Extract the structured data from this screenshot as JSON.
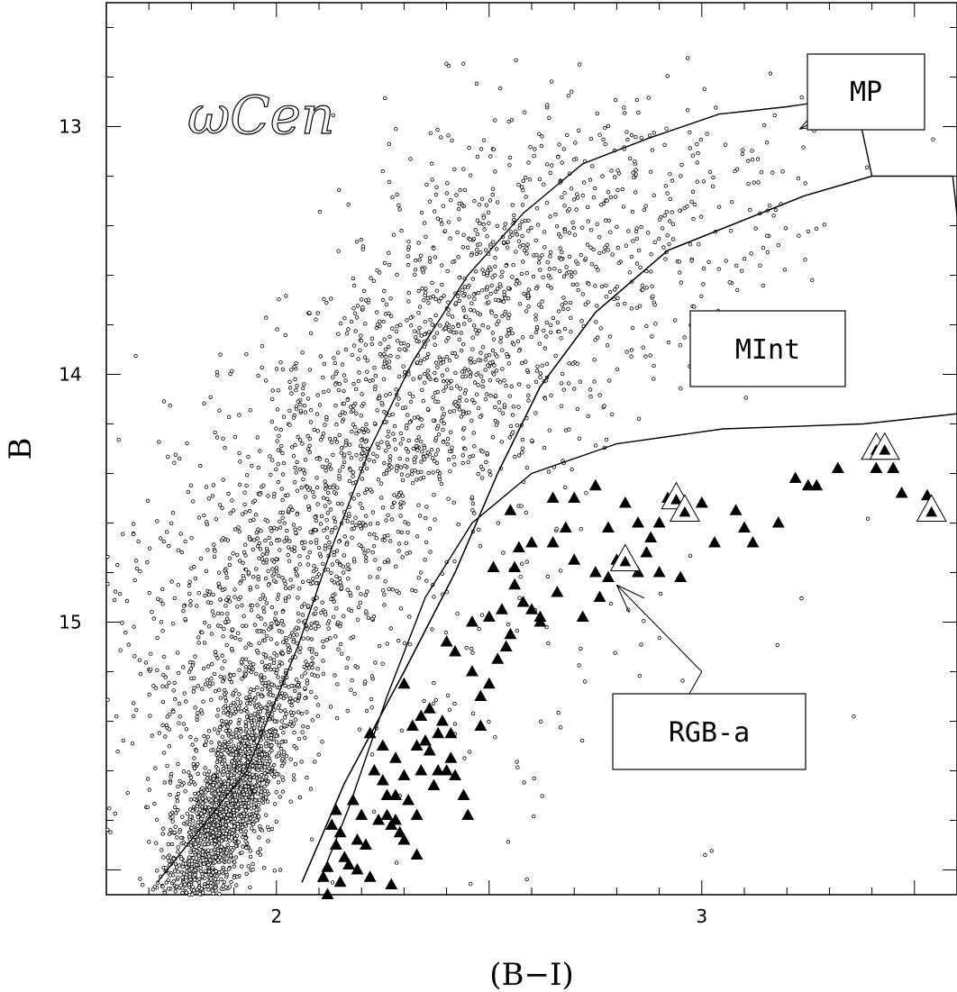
{
  "chart_data": {
    "type": "scatter",
    "title": "ωCen",
    "xlabel": "(B−I)",
    "ylabel": "B",
    "xlim": [
      1.6,
      3.6
    ],
    "ylim": [
      16.1,
      12.5
    ],
    "y_inverted": true,
    "xticks": [
      "2",
      "3"
    ],
    "xtick_values": [
      2,
      3
    ],
    "yticks": [
      "13",
      "14",
      "15"
    ],
    "ytick_values": [
      13,
      14,
      15
    ],
    "grid": false,
    "regions": [
      {
        "label": "MP",
        "polygon": [
          [
            1.72,
            16.05
          ],
          [
            1.93,
            15.6
          ],
          [
            2.05,
            15.1
          ],
          [
            2.13,
            14.7
          ],
          [
            2.22,
            14.3
          ],
          [
            2.32,
            13.95
          ],
          [
            2.45,
            13.6
          ],
          [
            2.58,
            13.35
          ],
          [
            2.72,
            13.15
          ],
          [
            2.87,
            13.05
          ],
          [
            3.04,
            12.95
          ],
          [
            3.2,
            12.92
          ],
          [
            3.36,
            12.88
          ],
          [
            3.4,
            13.2
          ],
          [
            3.24,
            13.28
          ],
          [
            2.92,
            13.5
          ],
          [
            2.75,
            13.75
          ],
          [
            2.62,
            14.05
          ],
          [
            2.52,
            14.4
          ],
          [
            2.42,
            14.8
          ],
          [
            2.3,
            15.2
          ],
          [
            2.16,
            15.65
          ],
          [
            2.06,
            16.05
          ]
        ],
        "arrow_from": [
          3.35,
          12.9
        ],
        "arrow_to": [
          3.23,
          13.01
        ]
      },
      {
        "label": "MInt",
        "polygon": [
          [
            2.06,
            16.05
          ],
          [
            2.16,
            15.65
          ],
          [
            2.3,
            15.2
          ],
          [
            2.42,
            14.8
          ],
          [
            2.52,
            14.4
          ],
          [
            2.62,
            14.05
          ],
          [
            2.75,
            13.75
          ],
          [
            2.92,
            13.5
          ],
          [
            3.24,
            13.28
          ],
          [
            3.4,
            13.2
          ],
          [
            3.59,
            13.2
          ],
          [
            3.65,
            14.15
          ],
          [
            3.38,
            14.2
          ],
          [
            3.05,
            14.22
          ],
          [
            2.8,
            14.28
          ],
          [
            2.6,
            14.4
          ],
          [
            2.46,
            14.6
          ],
          [
            2.35,
            14.9
          ],
          [
            2.26,
            15.3
          ],
          [
            2.17,
            15.75
          ],
          [
            2.1,
            16.05
          ]
        ]
      },
      {
        "label": "RGB-a",
        "arrow_from": [
          3.0,
          15.2
        ],
        "arrow_to": [
          2.8,
          14.85
        ]
      }
    ],
    "series": [
      {
        "marker": "open-circle",
        "clusters": [
          {
            "cx": 1.88,
            "cy": 15.75,
            "sx": 0.05,
            "sy": 0.28,
            "n": 1800,
            "along": -0.9
          },
          {
            "cx": 2.1,
            "cy": 14.6,
            "sx": 0.14,
            "sy": 0.45,
            "n": 1000,
            "along": -0.6
          },
          {
            "cx": 2.45,
            "cy": 13.85,
            "sx": 0.16,
            "sy": 0.4,
            "n": 900,
            "along": -0.5
          },
          {
            "cx": 2.85,
            "cy": 13.4,
            "sx": 0.22,
            "sy": 0.28,
            "n": 350,
            "along": -0.3
          },
          {
            "cx": 1.8,
            "cy": 15.2,
            "sx": 0.12,
            "sy": 0.5,
            "n": 350,
            "along": 0
          },
          {
            "cx": 2.4,
            "cy": 15.2,
            "sx": 0.35,
            "sy": 0.55,
            "n": 150,
            "along": 0
          }
        ]
      },
      {
        "marker": "filled-triangle",
        "points": [
          [
            2.13,
            15.82
          ],
          [
            2.14,
            15.9
          ],
          [
            2.15,
            15.85
          ],
          [
            2.16,
            15.95
          ],
          [
            2.12,
            15.99
          ],
          [
            2.15,
            16.05
          ],
          [
            2.12,
            16.1
          ],
          [
            2.17,
            15.98
          ],
          [
            2.19,
            16.0
          ],
          [
            2.2,
            15.78
          ],
          [
            2.19,
            15.88
          ],
          [
            2.21,
            15.9
          ],
          [
            2.22,
            16.03
          ],
          [
            2.14,
            15.76
          ],
          [
            2.11,
            16.03
          ],
          [
            2.18,
            15.72
          ],
          [
            2.22,
            15.45
          ],
          [
            2.25,
            15.5
          ],
          [
            2.23,
            15.6
          ],
          [
            2.26,
            15.7
          ],
          [
            2.28,
            15.55
          ],
          [
            2.29,
            15.85
          ],
          [
            2.24,
            15.8
          ],
          [
            2.27,
            15.82
          ],
          [
            2.3,
            15.62
          ],
          [
            2.32,
            15.42
          ],
          [
            2.34,
            15.38
          ],
          [
            2.35,
            15.48
          ],
          [
            2.31,
            15.72
          ],
          [
            2.33,
            15.78
          ],
          [
            2.36,
            15.52
          ],
          [
            2.38,
            15.45
          ],
          [
            2.4,
            15.6
          ],
          [
            2.37,
            15.66
          ],
          [
            2.39,
            15.4
          ],
          [
            2.41,
            15.55
          ],
          [
            2.3,
            15.88
          ],
          [
            2.33,
            15.94
          ],
          [
            2.27,
            16.06
          ],
          [
            2.28,
            15.7
          ],
          [
            2.25,
            15.64
          ],
          [
            2.26,
            15.78
          ],
          [
            2.28,
            15.8
          ],
          [
            2.33,
            15.5
          ],
          [
            2.34,
            15.6
          ],
          [
            2.36,
            15.35
          ],
          [
            2.38,
            15.6
          ],
          [
            2.41,
            15.45
          ],
          [
            2.42,
            15.62
          ],
          [
            2.44,
            15.7
          ],
          [
            2.45,
            15.78
          ],
          [
            2.3,
            15.25
          ],
          [
            2.4,
            15.08
          ],
          [
            2.42,
            15.12
          ],
          [
            2.46,
            15.2
          ],
          [
            2.48,
            15.42
          ],
          [
            2.5,
            15.25
          ],
          [
            2.52,
            15.15
          ],
          [
            2.5,
            14.98
          ],
          [
            2.53,
            14.95
          ],
          [
            2.55,
            15.05
          ],
          [
            2.56,
            14.85
          ],
          [
            2.54,
            15.1
          ],
          [
            2.58,
            14.92
          ],
          [
            2.6,
            14.95
          ],
          [
            2.62,
            14.98
          ],
          [
            2.56,
            14.78
          ],
          [
            2.51,
            14.78
          ],
          [
            2.57,
            14.7
          ],
          [
            2.6,
            14.68
          ],
          [
            2.65,
            14.68
          ],
          [
            2.7,
            14.75
          ],
          [
            2.75,
            14.8
          ],
          [
            2.78,
            14.82
          ],
          [
            2.8,
            14.75
          ],
          [
            2.85,
            14.8
          ],
          [
            2.87,
            14.72
          ],
          [
            2.9,
            14.6
          ],
          [
            2.92,
            14.5
          ],
          [
            2.97,
            14.55
          ],
          [
            3.03,
            14.68
          ],
          [
            3.08,
            14.55
          ],
          [
            3.1,
            14.62
          ],
          [
            3.12,
            14.68
          ],
          [
            3.18,
            14.6
          ],
          [
            3.22,
            14.42
          ],
          [
            3.25,
            14.45
          ],
          [
            3.27,
            14.45
          ],
          [
            3.32,
            14.38
          ],
          [
            3.41,
            14.38
          ],
          [
            3.45,
            14.38
          ],
          [
            3.47,
            14.48
          ],
          [
            3.53,
            14.49
          ],
          [
            2.78,
            14.62
          ],
          [
            2.82,
            14.52
          ],
          [
            2.85,
            14.6
          ],
          [
            2.88,
            14.66
          ],
          [
            2.7,
            14.5
          ],
          [
            2.65,
            14.5
          ],
          [
            2.75,
            14.45
          ],
          [
            2.68,
            14.62
          ],
          [
            2.55,
            14.55
          ],
          [
            2.95,
            14.52
          ],
          [
            3.0,
            14.52
          ],
          [
            2.9,
            14.8
          ],
          [
            2.95,
            14.82
          ],
          [
            2.62,
            15.0
          ],
          [
            2.66,
            14.88
          ],
          [
            2.72,
            14.98
          ],
          [
            2.76,
            14.9
          ],
          [
            2.48,
            15.3
          ],
          [
            2.46,
            15.0
          ]
        ]
      },
      {
        "marker": "open-triangle-with-dot",
        "points": [
          [
            3.41,
            14.3
          ],
          [
            3.43,
            14.3
          ],
          [
            2.94,
            14.5
          ],
          [
            2.96,
            14.55
          ],
          [
            3.54,
            14.55
          ],
          [
            2.82,
            14.75
          ]
        ]
      }
    ]
  }
}
